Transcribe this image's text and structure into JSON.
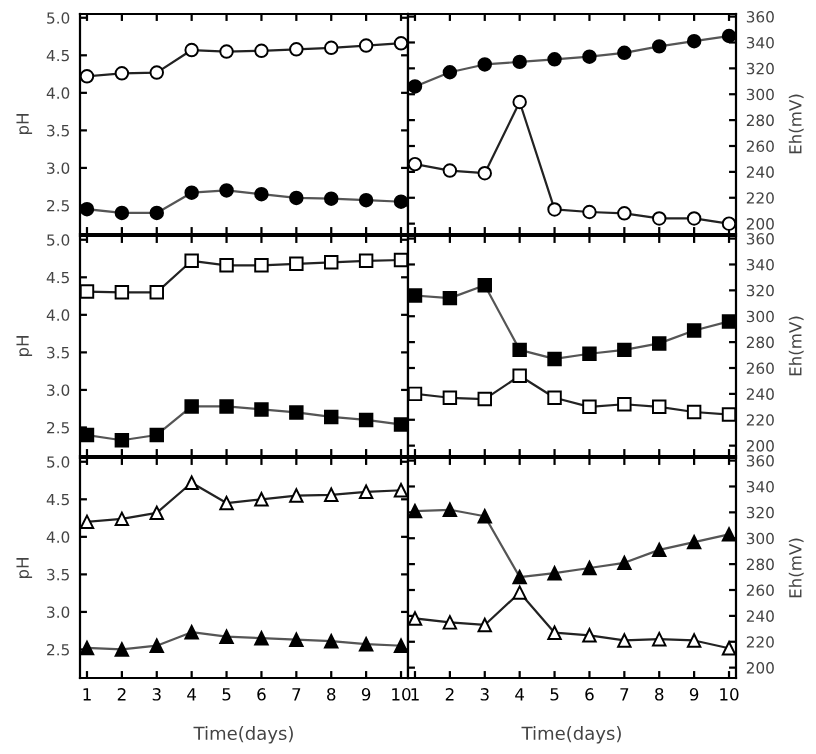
{
  "chart_data": [
    {
      "type": "line",
      "x": [
        1,
        2,
        3,
        4,
        5,
        6,
        7,
        8,
        9,
        10
      ],
      "ylabel": "pH",
      "xlim": [
        0.8,
        10.2
      ],
      "xticks": [
        1,
        2,
        3,
        4,
        5,
        6,
        7,
        8,
        9,
        10
      ],
      "ylim": [
        2.12,
        5.05
      ],
      "yticks": [
        2.5,
        {
          "value": 3,
          "label": "3.0"
        },
        3.5,
        {
          "value": 4,
          "label": "4.0"
        },
        4.5,
        {
          "value": 5,
          "label": "5.0"
        }
      ],
      "tick_labels": "y",
      "grid": false,
      "legend": false,
      "marker": "circle",
      "line_style": "solid",
      "series": [
        {
          "color": "#ffffff",
          "values": [
            4.22,
            4.26,
            4.27,
            4.57,
            4.55,
            4.56,
            4.58,
            4.6,
            4.63,
            4.66
          ]
        },
        {
          "color": "#000000",
          "values": [
            2.45,
            2.4,
            2.4,
            2.67,
            2.7,
            2.65,
            2.6,
            2.59,
            2.57,
            2.55
          ]
        }
      ]
    },
    {
      "type": "line",
      "x": [
        1,
        2,
        3,
        4,
        5,
        6,
        7,
        8,
        9,
        10
      ],
      "ylabel": "Eh(mV)",
      "xlim": [
        0.8,
        10.2
      ],
      "xticks": [
        1,
        2,
        3,
        4,
        5,
        6,
        7,
        8,
        9,
        10
      ],
      "ylim": [
        192,
        362
      ],
      "yticks": [
        200,
        220,
        240,
        260,
        280,
        300,
        320,
        340,
        360
      ],
      "tick_labels": "y",
      "grid": false,
      "legend": false,
      "marker": "circle",
      "line_style": "solid",
      "series": [
        {
          "color": "#000000",
          "values": [
            306,
            317,
            323,
            325,
            327,
            329,
            332,
            337,
            341,
            345
          ]
        },
        {
          "color": "#ffffff",
          "values": [
            246,
            241,
            239,
            294,
            211,
            209,
            208,
            204,
            204,
            200
          ]
        }
      ]
    },
    {
      "type": "line",
      "x": [
        1,
        2,
        3,
        4,
        5,
        6,
        7,
        8,
        9,
        10
      ],
      "ylabel": "pH",
      "xlim": [
        0.8,
        10.2
      ],
      "xticks": [
        1,
        2,
        3,
        4,
        5,
        6,
        7,
        8,
        9,
        10
      ],
      "ylim": [
        2.12,
        5.05
      ],
      "yticks": [
        2.5,
        {
          "value": 3,
          "label": "3.0"
        },
        3.5,
        {
          "value": 4,
          "label": "4.0"
        },
        4.5,
        {
          "value": 5,
          "label": "5.0"
        }
      ],
      "tick_labels": "y",
      "grid": false,
      "legend": false,
      "marker": "square",
      "line_style": "solid",
      "series": [
        {
          "color": "#ffffff",
          "values": [
            4.31,
            4.3,
            4.3,
            4.72,
            4.66,
            4.66,
            4.68,
            4.7,
            4.72,
            4.73
          ]
        },
        {
          "color": "#000000",
          "values": [
            2.4,
            2.33,
            2.4,
            2.78,
            2.78,
            2.74,
            2.7,
            2.64,
            2.6,
            2.54
          ]
        }
      ]
    },
    {
      "type": "line",
      "x": [
        1,
        2,
        3,
        4,
        5,
        6,
        7,
        8,
        9,
        10
      ],
      "ylabel": "Eh(mV)",
      "xlim": [
        0.8,
        10.2
      ],
      "xticks": [
        1,
        2,
        3,
        4,
        5,
        6,
        7,
        8,
        9,
        10
      ],
      "ylim": [
        192,
        362
      ],
      "yticks": [
        200,
        220,
        240,
        260,
        280,
        300,
        320,
        340,
        360
      ],
      "tick_labels": "y",
      "grid": false,
      "legend": false,
      "marker": "square",
      "line_style": "solid",
      "series": [
        {
          "color": "#000000",
          "values": [
            316,
            314,
            324,
            274,
            267,
            271,
            274,
            279,
            289,
            296
          ]
        },
        {
          "color": "#ffffff",
          "values": [
            240,
            237,
            236,
            254,
            237,
            230,
            232,
            230,
            226,
            224
          ]
        }
      ]
    },
    {
      "type": "line",
      "x": [
        1,
        2,
        3,
        4,
        5,
        6,
        7,
        8,
        9,
        10
      ],
      "xlabel": "Time(days)",
      "ylabel": "pH",
      "xlim": [
        0.8,
        10.2
      ],
      "xticks": [
        1,
        2,
        3,
        4,
        5,
        6,
        7,
        8,
        9,
        10
      ],
      "ylim": [
        2.12,
        5.05
      ],
      "yticks": [
        2.5,
        {
          "value": 3,
          "label": "3.0"
        },
        3.5,
        {
          "value": 4,
          "label": "4.0"
        },
        4.5,
        {
          "value": 5,
          "label": "5.0"
        }
      ],
      "grid": false,
      "legend": false,
      "marker": "triangle",
      "line_style": "solid",
      "series": [
        {
          "color": "#ffffff",
          "values": [
            4.2,
            4.24,
            4.32,
            4.72,
            4.45,
            4.5,
            4.55,
            4.56,
            4.6,
            4.62
          ]
        },
        {
          "color": "#000000",
          "values": [
            2.52,
            2.5,
            2.55,
            2.73,
            2.67,
            2.65,
            2.63,
            2.61,
            2.57,
            2.55
          ]
        }
      ]
    },
    {
      "type": "line",
      "x": [
        1,
        2,
        3,
        4,
        5,
        6,
        7,
        8,
        9,
        10
      ],
      "xlabel": "Time(days)",
      "ylabel": "Eh(mV)",
      "xlim": [
        0.8,
        10.2
      ],
      "xticks": [
        1,
        2,
        3,
        4,
        5,
        6,
        7,
        8,
        9,
        10
      ],
      "ylim": [
        192,
        362
      ],
      "yticks": [
        200,
        220,
        240,
        260,
        280,
        300,
        320,
        340,
        360
      ],
      "grid": false,
      "legend": false,
      "marker": "triangle",
      "line_style": "solid",
      "series": [
        {
          "color": "#000000",
          "values": [
            321,
            322,
            317,
            270,
            273,
            277,
            281,
            291,
            297,
            303
          ]
        },
        {
          "color": "#ffffff",
          "values": [
            238,
            235,
            233,
            258,
            227,
            225,
            221,
            222,
            221,
            215
          ]
        }
      ]
    }
  ]
}
